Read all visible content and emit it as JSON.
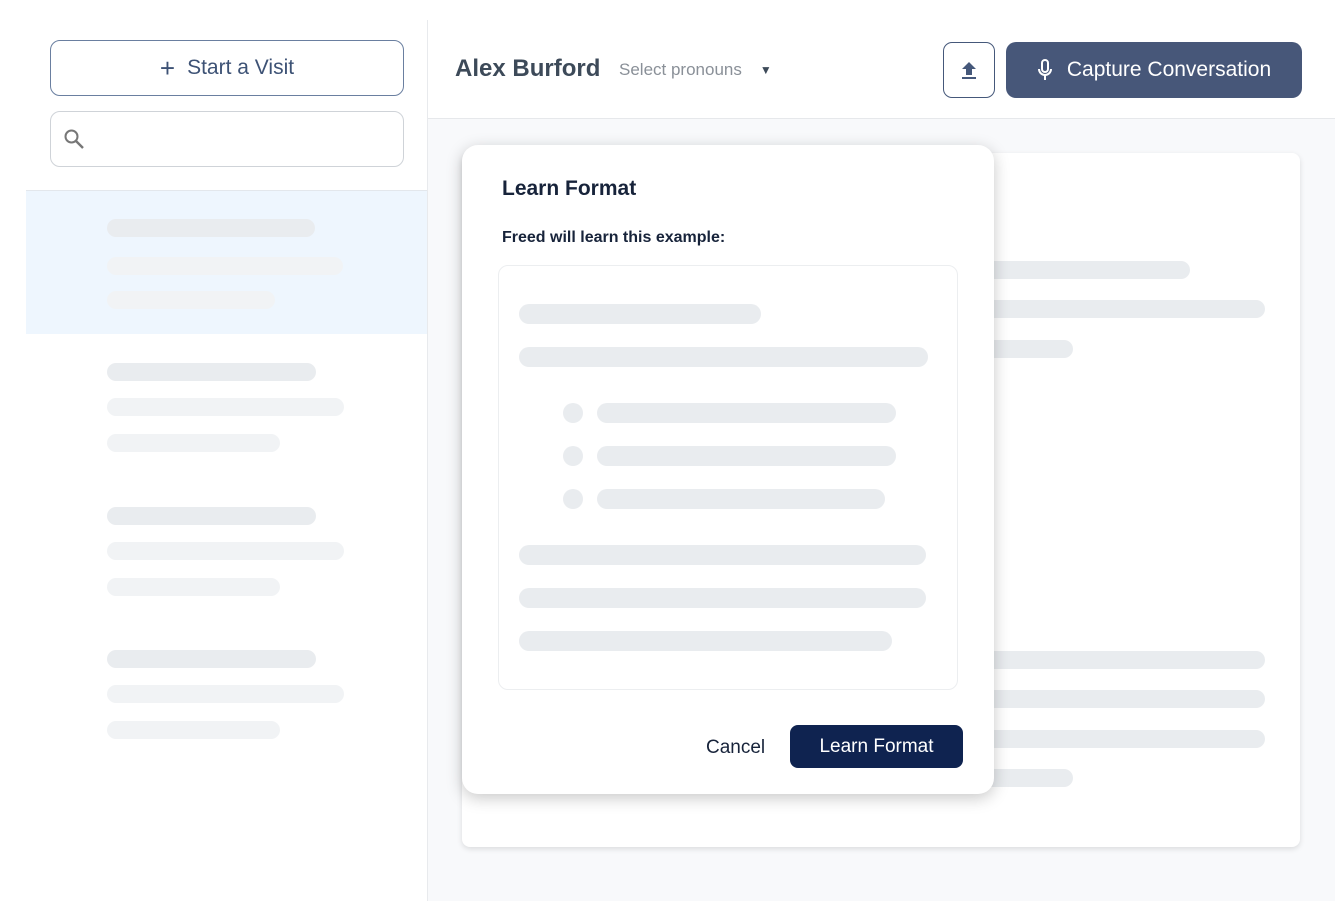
{
  "sidebar": {
    "start_visit_label": "Start a Visit",
    "search_placeholder": ""
  },
  "header": {
    "patient_name": "Alex Burford",
    "pronouns_placeholder": "Select pronouns",
    "capture_label": "Capture Conversation"
  },
  "modal": {
    "title": "Learn Format",
    "subtitle": "Freed will learn this example:",
    "cancel_label": "Cancel",
    "confirm_label": "Learn Format"
  },
  "colors": {
    "primary": "#475779",
    "confirm": "#0f2350",
    "selected_row": "#eef6fe"
  }
}
